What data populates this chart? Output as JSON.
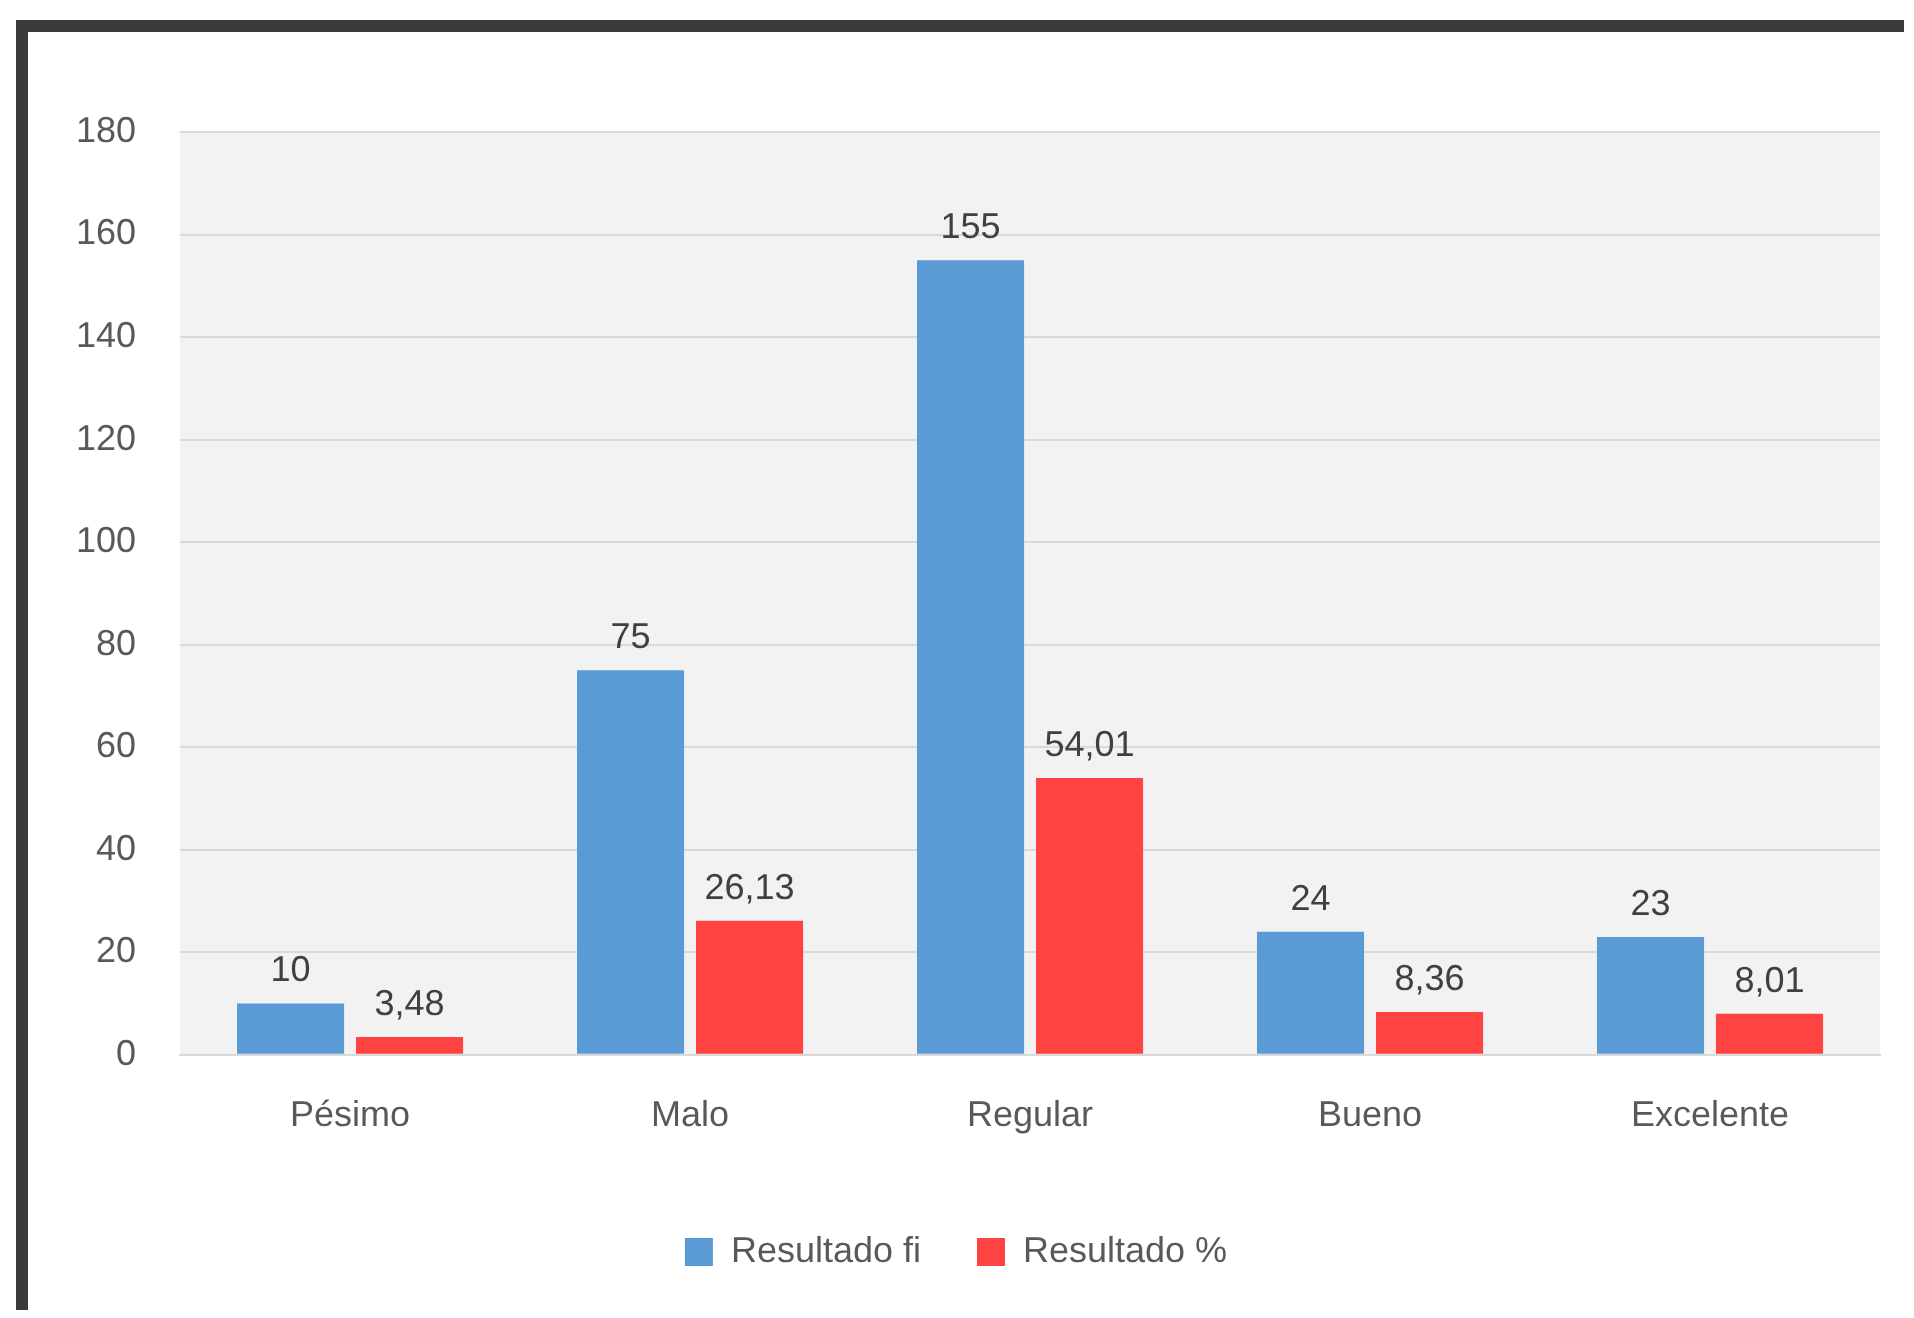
{
  "chart_data": {
    "type": "bar",
    "categories": [
      "Pésimo",
      "Malo",
      "Regular",
      "Bueno",
      "Excelente"
    ],
    "series": [
      {
        "name": "Resultado fi",
        "color": "#5b9bd5",
        "values": [
          10,
          75,
          155,
          24,
          23
        ],
        "value_labels": [
          "10",
          "75",
          "155",
          "24",
          "23"
        ]
      },
      {
        "name": "Resultado %",
        "color": "#ff4343",
        "values": [
          3.48,
          26.13,
          54.01,
          8.36,
          8.01
        ],
        "value_labels": [
          "3,48",
          "26,13",
          "54,01",
          "8,36",
          "8,01"
        ]
      }
    ],
    "ylim": [
      0,
      180
    ],
    "yticks": [
      0,
      20,
      40,
      60,
      80,
      100,
      120,
      140,
      160,
      180
    ],
    "grid": "y",
    "legend": "bottom"
  }
}
